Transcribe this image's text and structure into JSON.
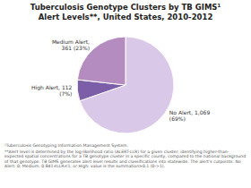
{
  "chart_data": {
    "type": "pie",
    "title": "Tuberculosis Genotype Clusters by TB GIMS¹\nAlert Levels**, United States, 2010-2012",
    "categories": [
      "No Alert, 1,069\n(69%)",
      "High Alert, 112\n(7%)",
      "Medium Alert,\n361 (23%)"
    ],
    "values": [
      69,
      7,
      23
    ],
    "colors": [
      "#d9c8e8",
      "#7b5ea7",
      "#b48cc0"
    ],
    "annotations": [
      "¹Tuberculosis Genotyping Information Management System.",
      "**Alert level is determined by the log-likelihood ratio (ALERT-LLR) for a given cluster, identifying higher-than-expected spatial concentrations for a TB genotype cluster in a specific county, compared to the national background of that genotype. TB GIMS generates alert level results and classifications into statewide. The alert’s cutpoints: No Alert: 0; Medium: 0.841≤LLR≤1; or High: value is the summation≥0.1 (0->1)."
    ]
  }
}
